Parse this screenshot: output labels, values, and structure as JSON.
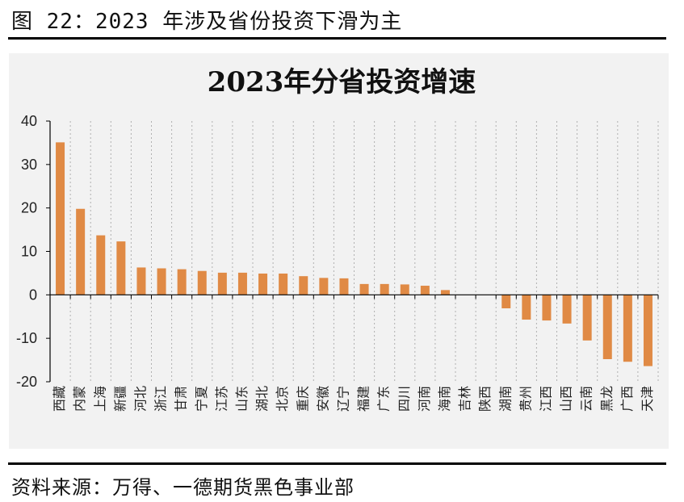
{
  "figure": {
    "title": "图 22：2023 年涉及省份投资下滑为主",
    "source": "资料来源：万得、一德期货黑色事业部"
  },
  "colors": {
    "bar": "#e08a45",
    "gridline": "#b0b0b0",
    "axis": "#000000",
    "panel_bg": "#f2f2f2"
  },
  "chart_data": {
    "type": "bar",
    "title": "2023年分省投资增速",
    "xlabel": "",
    "ylabel": "",
    "ylim": [
      -20,
      40
    ],
    "yticks": [
      -20,
      -10,
      0,
      10,
      20,
      30,
      40
    ],
    "grid": "vertical dotted",
    "legend": "none",
    "categories": [
      "西藏",
      "内蒙",
      "上海",
      "新疆",
      "河北",
      "浙江",
      "甘肃",
      "宁夏",
      "江苏",
      "山东",
      "湖北",
      "北京",
      "重庆",
      "安徽",
      "辽宁",
      "福建",
      "广东",
      "四川",
      "河南",
      "海南",
      "吉林",
      "陕西",
      "湖南",
      "贵州",
      "江西",
      "山西",
      "云南",
      "黑龙",
      "广西",
      "天津"
    ],
    "values": [
      35.1,
      19.8,
      13.7,
      12.3,
      6.3,
      6.1,
      5.9,
      5.5,
      5.1,
      5.1,
      4.9,
      4.9,
      4.3,
      3.9,
      3.8,
      2.5,
      2.5,
      2.4,
      2.1,
      1.1,
      0,
      0,
      -3.1,
      -5.7,
      -5.9,
      -6.6,
      -10.5,
      -14.8,
      -15.4,
      -16.4
    ]
  }
}
